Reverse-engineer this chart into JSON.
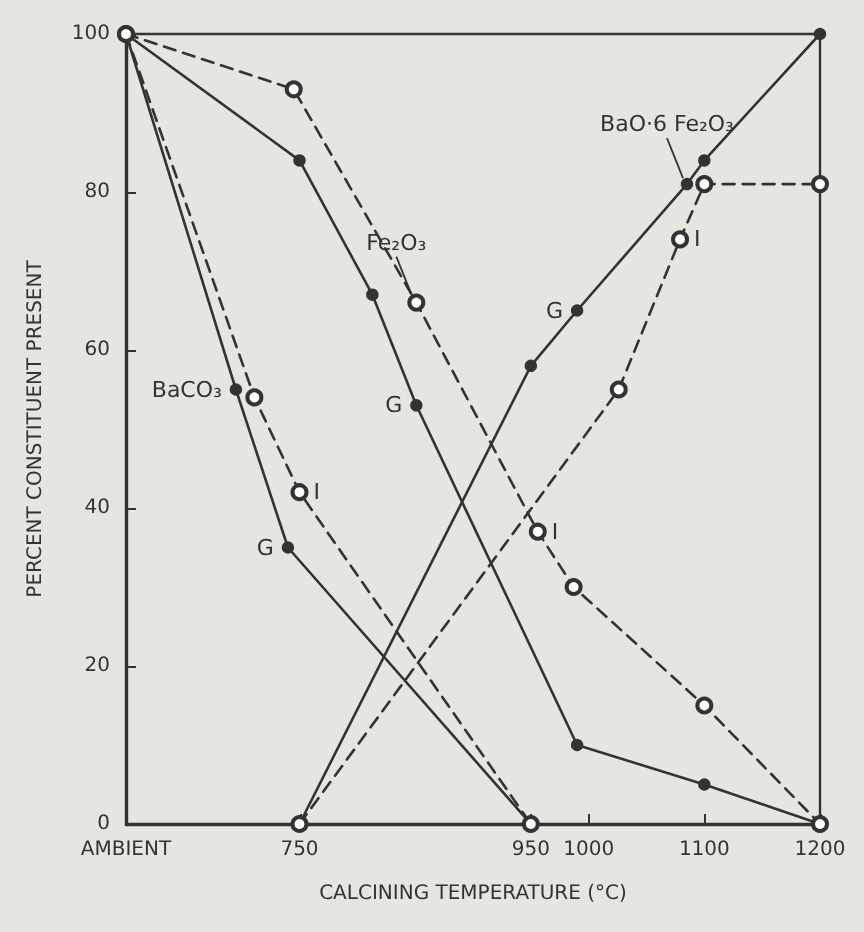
{
  "chart_data": {
    "type": "line",
    "xlabel": "CALCINING TEMPERATURE (°C)",
    "ylabel": "PERCENT CONSTITUENT PRESENT",
    "xlim": [
      600,
      1200
    ],
    "xticks": [
      {
        "value": 600,
        "label": "AMBIENT"
      },
      750,
      950,
      1000,
      1100,
      1200
    ],
    "ylim": [
      0,
      100
    ],
    "yticks": [
      0,
      20,
      40,
      60,
      80,
      100
    ],
    "grid": false,
    "series": [
      {
        "color": "#333333",
        "line_style": "solid",
        "marker": "circle",
        "x": [
          600,
          695,
          740,
          950
        ],
        "values": [
          100,
          55,
          35,
          0
        ]
      },
      {
        "color": "#333333",
        "line_style": "dashed",
        "marker": "circle",
        "x": [
          600,
          711,
          750,
          950
        ],
        "values": [
          100,
          54,
          42,
          0
        ]
      },
      {
        "color": "#333333",
        "line_style": "solid",
        "marker": "circle",
        "x": [
          600,
          750,
          813,
          851,
          990,
          1100,
          1200
        ],
        "values": [
          100,
          84,
          67,
          53,
          10,
          5,
          0
        ]
      },
      {
        "color": "#333333",
        "line_style": "dashed",
        "marker": "circle",
        "x": [
          600,
          745,
          851,
          956,
          987,
          1100,
          1200
        ],
        "values": [
          100,
          93,
          66,
          37,
          30,
          15,
          0
        ]
      },
      {
        "color": "#333333",
        "line_style": "solid",
        "marker": "circle",
        "x": [
          750,
          950,
          990,
          1085,
          1100,
          1200
        ],
        "values": [
          0,
          58,
          65,
          81,
          84,
          100
        ]
      },
      {
        "color": "#333333",
        "line_style": "dashed",
        "marker": "circle",
        "x": [
          750,
          1026,
          1079,
          1100,
          1200
        ],
        "values": [
          0,
          55,
          74,
          81,
          81
        ]
      }
    ],
    "annotations": [
      {
        "text": "BaCO₃",
        "x": 695,
        "y": 55
      },
      {
        "text": "Fe₂O₃",
        "x": 851,
        "y": 66
      },
      {
        "text": "BaO·6 Fe₂O₃",
        "x": 1085,
        "y": 81
      },
      {
        "text": "G",
        "x": 740,
        "y": 35
      },
      {
        "text": "G",
        "x": 851,
        "y": 53
      },
      {
        "text": "G",
        "x": 990,
        "y": 65
      },
      {
        "text": "I",
        "x": 750,
        "y": 42
      },
      {
        "text": "I",
        "x": 956,
        "y": 37
      },
      {
        "text": "I",
        "x": 1079,
        "y": 74
      }
    ]
  }
}
